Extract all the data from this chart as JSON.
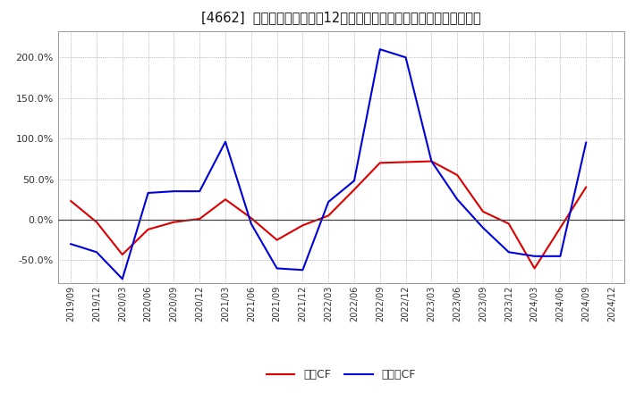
{
  "title": "[4662]  キャッシュフローの12か月移動合計の対前年同期増減率の推移",
  "x_labels": [
    "2019/09",
    "2019/12",
    "2020/03",
    "2020/06",
    "2020/09",
    "2020/12",
    "2021/03",
    "2021/06",
    "2021/09",
    "2021/12",
    "2022/03",
    "2022/06",
    "2022/09",
    "2022/12",
    "2023/03",
    "2023/06",
    "2023/09",
    "2023/12",
    "2024/03",
    "2024/06",
    "2024/09",
    "2024/12"
  ],
  "operating_cf": [
    0.23,
    -0.03,
    -0.43,
    -0.12,
    -0.03,
    0.01,
    0.25,
    0.02,
    -0.25,
    -0.07,
    0.05,
    0.37,
    0.7,
    0.71,
    0.72,
    0.55,
    0.1,
    -0.05,
    -0.6,
    -0.1,
    0.4,
    null
  ],
  "free_cf": [
    -0.3,
    -0.4,
    -0.73,
    0.33,
    0.35,
    0.35,
    0.96,
    -0.05,
    -0.6,
    -0.62,
    0.22,
    0.48,
    2.1,
    2.0,
    0.72,
    0.25,
    -0.1,
    -0.4,
    -0.45,
    -0.45,
    0.95,
    null
  ],
  "operating_color": "#dd0000",
  "free_color": "#0000dd",
  "background_color": "#ffffff",
  "plot_bg_color": "#ffffff",
  "grid_color": "#888888",
  "yticks": [
    -0.5,
    0.0,
    0.5,
    1.0,
    1.5,
    2.0
  ],
  "ylim_min": -0.78,
  "ylim_max": 2.32,
  "legend_labels": [
    "営業CF",
    "フリーCF"
  ]
}
